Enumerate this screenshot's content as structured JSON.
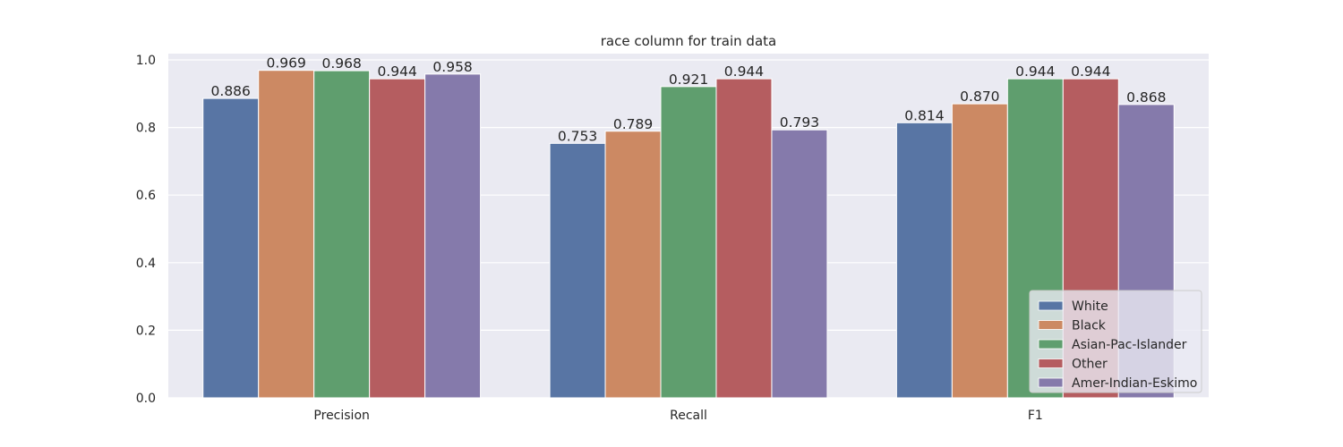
{
  "chart_data": {
    "type": "bar",
    "title": "race column for train data",
    "xlabel": "",
    "ylabel": "",
    "categories": [
      "Precision",
      "Recall",
      "F1"
    ],
    "ylim": [
      0,
      1.0
    ],
    "yticks": [
      "0.0",
      "0.2",
      "0.4",
      "0.6",
      "0.8",
      "1.0"
    ],
    "grid": true,
    "legend_position": "bottom-right",
    "series": [
      {
        "name": "White",
        "color": "#5875a4",
        "values": [
          0.886,
          0.753,
          0.814
        ],
        "labels": [
          "0.886",
          "0.753",
          "0.814"
        ]
      },
      {
        "name": "Black",
        "color": "#cc8963",
        "values": [
          0.969,
          0.789,
          0.87
        ],
        "labels": [
          "0.969",
          "0.789",
          "0.870"
        ]
      },
      {
        "name": "Asian-Pac-Islander",
        "color": "#5f9e6e",
        "values": [
          0.968,
          0.921,
          0.944
        ],
        "labels": [
          "0.968",
          "0.921",
          "0.944"
        ]
      },
      {
        "name": "Other",
        "color": "#b55d60",
        "values": [
          0.944,
          0.944,
          0.944
        ],
        "labels": [
          "0.944",
          "0.944",
          "0.944"
        ]
      },
      {
        "name": "Amer-Indian-Eskimo",
        "color": "#857aab",
        "values": [
          0.958,
          0.793,
          0.868
        ],
        "labels": [
          "0.958",
          "0.793",
          "0.868"
        ]
      }
    ]
  }
}
